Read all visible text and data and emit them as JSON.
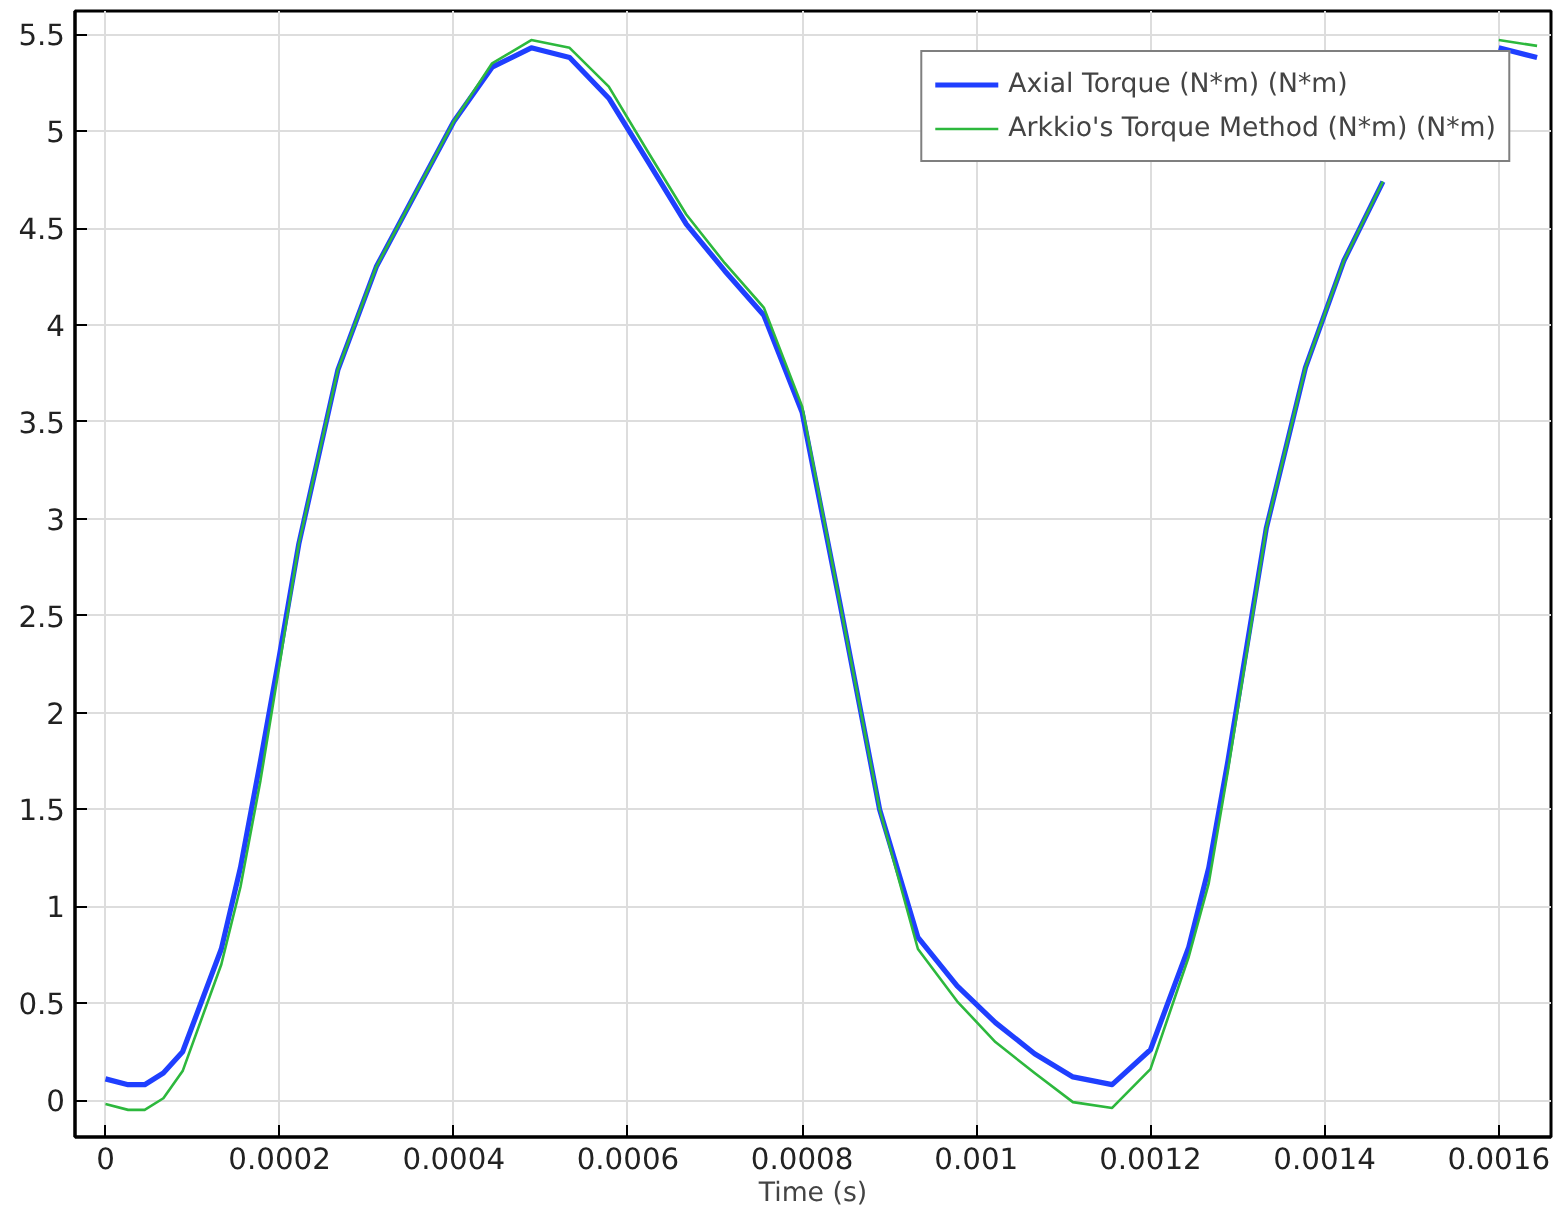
{
  "chart_data": {
    "type": "line",
    "xlabel": "Time (s)",
    "x": [
      0,
      2.6e-05,
      4.5e-05,
      6.65e-05,
      8.86e-05,
      0.000133,
      0.000155,
      0.000178,
      0.0002,
      0.000222,
      0.000267,
      0.000311,
      0.000356,
      0.0004,
      0.000444,
      0.000489,
      0.000533,
      0.000578,
      0.000622,
      0.000667,
      0.000711,
      0.000756,
      0.0008,
      0.000844,
      0.000889,
      0.000933,
      0.000978,
      0.001022,
      0.001067,
      0.001111,
      0.001156,
      0.0012,
      0.001244,
      0.001267,
      0.001289,
      0.001311,
      0.001333,
      0.001378,
      0.001422,
      0.001467,
      0.001511,
      0.001556,
      0.0016,
      0.001644
    ],
    "series": [
      {
        "name": "Axial Torque (N*m) (N*m)",
        "color": "#1f3fff",
        "values": [
          0.11,
          0.08,
          0.08,
          0.14,
          0.25,
          0.78,
          1.2,
          1.75,
          2.3,
          2.87,
          3.77,
          4.3,
          4.68,
          5.05,
          5.33,
          5.43,
          5.38,
          5.17,
          4.85,
          4.52,
          4.28,
          4.05,
          3.55,
          2.55,
          1.5,
          0.84,
          0.59,
          0.4,
          0.24,
          0.12,
          0.08,
          0.26,
          0.79,
          1.2,
          1.75,
          2.35,
          2.95,
          3.78,
          4.33,
          4.74,
          null,
          null,
          5.43,
          5.38
        ]
      },
      {
        "name": "Arkkio's Torque Method (N*m) (N*m)",
        "color": "#2db83d",
        "values": [
          -0.02,
          -0.05,
          -0.05,
          0.01,
          0.15,
          0.7,
          1.1,
          1.65,
          2.25,
          2.87,
          3.77,
          4.3,
          4.68,
          5.05,
          5.35,
          5.47,
          5.43,
          5.23,
          4.9,
          4.57,
          4.32,
          4.09,
          3.58,
          2.55,
          1.5,
          0.78,
          0.51,
          0.3,
          0.14,
          -0.01,
          -0.04,
          0.16,
          0.74,
          1.12,
          1.7,
          2.32,
          2.95,
          3.78,
          4.33,
          4.74,
          null,
          null,
          5.47,
          5.44
        ]
      }
    ],
    "xlim": [
      -3.5e-05,
      0.00166
    ],
    "ylim": [
      -0.19,
      5.62
    ],
    "xticks": [
      0,
      0.0002,
      0.0004,
      0.0006,
      0.0008,
      0.001,
      0.0012,
      0.0014,
      0.0016
    ],
    "yticks": [
      0,
      0.5,
      1,
      1.5,
      2,
      2.5,
      3,
      3.5,
      4,
      4.5,
      5,
      5.5
    ],
    "grid": true,
    "legend": "top right",
    "marker": "none",
    "line_style": "solid"
  }
}
